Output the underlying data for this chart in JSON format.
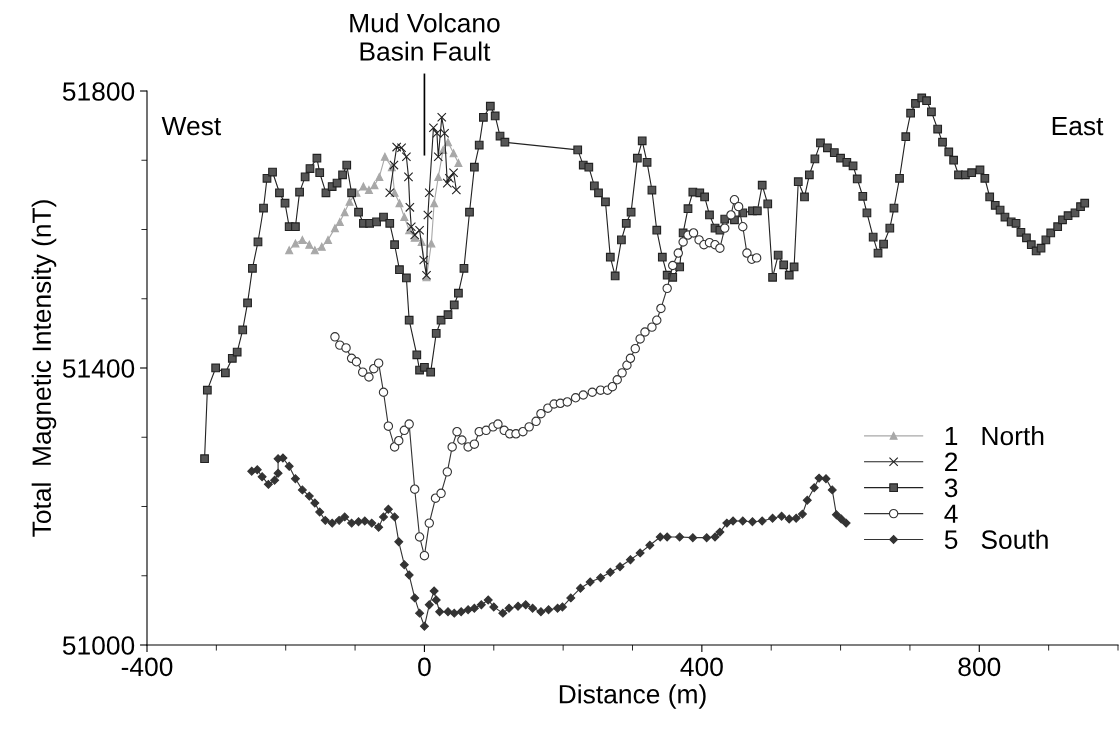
{
  "chart_data": {
    "type": "line",
    "xlabel": "Distance (m)",
    "ylabel": "Total  Magnetic Intensity (nT)",
    "xlim": [
      -400,
      1000
    ],
    "ylim": [
      51000,
      51800
    ],
    "xticks": [
      -400,
      {
        "value": -300,
        "label": null
      },
      {
        "value": -200,
        "label": null
      },
      {
        "value": -100,
        "label": null
      },
      0,
      {
        "value": 100,
        "label": null
      },
      {
        "value": 200,
        "label": null
      },
      {
        "value": 300,
        "label": null
      },
      400,
      {
        "value": 500,
        "label": null
      },
      {
        "value": 600,
        "label": null
      },
      {
        "value": 700,
        "label": null
      },
      800,
      {
        "value": 900,
        "label": null
      },
      {
        "value": 1000,
        "label": null
      }
    ],
    "yticks": [
      51000,
      {
        "value": 51100,
        "label": null
      },
      {
        "value": 51200,
        "label": null
      },
      {
        "value": 51300,
        "label": null
      },
      51400,
      {
        "value": 51500,
        "label": null
      },
      {
        "value": 51600,
        "label": null
      },
      {
        "value": 51700,
        "label": null
      },
      51800
    ],
    "grid": false,
    "legend": "bottom right",
    "line_style": "solid",
    "annotations": [
      "West",
      "East"
    ],
    "ref_lines": [
      {
        "axis": "x",
        "value": 0,
        "label": "Mud Volcano\nBasin Fault"
      }
    ],
    "series": [
      {
        "name": "1   North",
        "color": "#a8a8a8",
        "marker": "triangle",
        "x": [
          -195,
          -186,
          -176,
          -166,
          -158,
          -148,
          -139,
          -129,
          -122,
          -115,
          -108,
          -98,
          -88,
          -80,
          -72,
          -65,
          -57,
          -47,
          -43,
          -36,
          -29,
          -22,
          -14,
          -4,
          3,
          10,
          14,
          20,
          27,
          34,
          42,
          49
        ],
        "values": [
          51570,
          51580,
          51585,
          51578,
          51570,
          51575,
          51585,
          51602,
          51611,
          51625,
          51640,
          51653,
          51662,
          51657,
          51664,
          51676,
          51705,
          51690,
          51653,
          51638,
          51618,
          51599,
          51588,
          51582,
          51531,
          51580,
          51638,
          51676,
          51715,
          51726,
          51710,
          51696
        ]
      },
      {
        "name": "2",
        "color": "#222222",
        "marker": "cross",
        "x": [
          -50,
          -44,
          -40,
          -33,
          -26,
          -23,
          -21,
          -19,
          -14,
          -7,
          -1,
          3,
          5,
          7,
          13,
          18,
          20,
          25,
          29,
          33,
          36,
          42,
          46
        ],
        "values": [
          51653,
          51693,
          51719,
          51718,
          51705,
          51676,
          51632,
          51604,
          51592,
          51599,
          51556,
          51534,
          51621,
          51653,
          51747,
          51739,
          51705,
          51762,
          51739,
          51667,
          51674,
          51682,
          51657
        ]
      },
      {
        "name": "3",
        "color": "#222222",
        "marker": "square",
        "x": [
          -317,
          -313,
          -301,
          -287,
          -277,
          -270,
          -262,
          -255,
          -248,
          -240,
          -232,
          -227,
          -219,
          -209,
          -201,
          -195,
          -186,
          -180,
          -172,
          -165,
          -155,
          -151,
          -142,
          -133,
          -126,
          -118,
          -112,
          -105,
          -95,
          -88,
          -79,
          -69,
          -59,
          -50,
          -43,
          -36,
          -26,
          -22,
          -11,
          -7,
          0,
          9,
          17,
          24,
          34,
          43,
          49,
          57,
          65,
          72,
          79,
          85,
          95,
          102,
          109,
          116,
          221,
          229,
          237,
          245,
          251,
          261,
          268,
          275,
          284,
          291,
          298,
          307,
          314,
          321,
          328,
          335,
          343,
          350,
          358,
          368,
          373,
          380,
          387,
          397,
          404,
          411,
          419,
          426,
          433,
          447,
          459,
          473,
          480,
          487,
          495,
          502,
          510,
          518,
          526,
          533,
          539,
          548,
          555,
          563,
          571,
          581,
          591,
          600,
          609,
          618,
          624,
          632,
          638,
          647,
          654,
          662,
          671,
          677,
          685,
          694,
          701,
          708,
          717,
          724,
          731,
          740,
          747,
          756,
          763,
          770,
          780,
          789,
          801,
          808,
          815,
          823,
          830,
          837,
          846,
          853,
          860,
          868,
          875,
          882,
          889,
          896,
          903,
          913,
          920,
          928,
          938,
          946,
          952
        ],
        "values": [
          51269,
          51368,
          51400,
          51393,
          51414,
          51423,
          51455,
          51494,
          51544,
          51582,
          51631,
          51674,
          51683,
          51653,
          51638,
          51604,
          51604,
          51654,
          51676,
          51688,
          51703,
          51682,
          51653,
          51662,
          51667,
          51679,
          51693,
          51653,
          51625,
          51609,
          51609,
          51611,
          51618,
          51609,
          51578,
          51542,
          51530,
          51469,
          51419,
          51397,
          51401,
          51394,
          51450,
          51469,
          51477,
          51491,
          51508,
          51544,
          51625,
          51690,
          51722,
          51762,
          51778,
          51764,
          51735,
          51726,
          51715,
          51693,
          51690,
          51663,
          51653,
          51640,
          51560,
          51533,
          51585,
          51609,
          51625,
          51703,
          51728,
          51697,
          51657,
          51599,
          51560,
          51534,
          51531,
          51546,
          51595,
          51630,
          51654,
          51653,
          51647,
          51621,
          51602,
          51599,
          51615,
          51614,
          51624,
          51627,
          51627,
          51664,
          51637,
          51531,
          51563,
          51549,
          51534,
          51546,
          51669,
          51647,
          51679,
          51702,
          51725,
          51718,
          51711,
          51703,
          51697,
          51692,
          51673,
          51648,
          51624,
          51589,
          51566,
          51579,
          51602,
          51631,
          51674,
          51734,
          51768,
          51782,
          51790,
          51786,
          51770,
          51745,
          51726,
          51712,
          51700,
          51679,
          51679,
          51682,
          51686,
          51674,
          51647,
          51635,
          51628,
          51618,
          51611,
          51609,
          51596,
          51588,
          51578,
          51569,
          51573,
          51585,
          51595,
          51604,
          51614,
          51620,
          51624,
          51633,
          51638
        ]
      },
      {
        "name": "4",
        "color": "#333333",
        "marker": "circle",
        "x": [
          -129,
          -122,
          -113,
          -105,
          -98,
          -89,
          -80,
          -73,
          -66,
          -59,
          -52,
          -43,
          -37,
          -29,
          -22,
          -14,
          -7,
          0,
          7,
          16,
          24,
          33,
          40,
          47,
          54,
          63,
          72,
          79,
          89,
          99,
          106,
          115,
          123,
          132,
          142,
          151,
          161,
          168,
          178,
          187,
          196,
          206,
          218,
          229,
          242,
          254,
          264,
          271,
          278,
          285,
          292,
          297,
          304,
          311,
          318,
          328,
          335,
          341,
          350,
          358,
          366,
          373,
          380,
          388,
          396,
          403,
          411,
          419,
          426,
          433,
          442,
          447,
          453,
          459,
          465,
          472,
          479
        ],
        "values": [
          51445,
          51433,
          51429,
          51414,
          51409,
          51394,
          51387,
          51399,
          51407,
          51365,
          51316,
          51286,
          51295,
          51310,
          51319,
          51225,
          51156,
          51129,
          51176,
          51212,
          51219,
          51250,
          51286,
          51308,
          51296,
          51286,
          51290,
          51308,
          51310,
          51315,
          51319,
          51310,
          51305,
          51305,
          51308,
          51315,
          51323,
          51334,
          51342,
          51348,
          51349,
          51351,
          51357,
          51361,
          51365,
          51368,
          51368,
          51373,
          51383,
          51393,
          51404,
          51414,
          51428,
          51442,
          51452,
          51459,
          51469,
          51486,
          51515,
          51548,
          51566,
          51582,
          51592,
          51595,
          51585,
          51578,
          51581,
          51578,
          51573,
          51602,
          51621,
          51643,
          51633,
          51604,
          51566,
          51557,
          51559
        ]
      },
      {
        "name": "5   South",
        "color": "#333333",
        "marker": "diamond",
        "x": [
          -249,
          -241,
          -234,
          -225,
          -216,
          -211,
          -211,
          -204,
          -195,
          -186,
          -176,
          -166,
          -158,
          -151,
          -143,
          -133,
          -123,
          -115,
          -105,
          -95,
          -86,
          -76,
          -66,
          -59,
          -52,
          -43,
          -37,
          -29,
          -22,
          -14,
          -7,
          0,
          7,
          14,
          17,
          22,
          34,
          43,
          53,
          63,
          72,
          82,
          92,
          100,
          113,
          122,
          135,
          146,
          156,
          168,
          179,
          192,
          199,
          211,
          225,
          239,
          254,
          268,
          282,
          297,
          311,
          325,
          340,
          350,
          368,
          387,
          407,
          419,
          426,
          436,
          445,
          459,
          473,
          487,
          502,
          515,
          526,
          536,
          545,
          552,
          562,
          569,
          579,
          588,
          594,
          601,
          608
        ],
        "values": [
          51251,
          51253,
          51243,
          51232,
          51238,
          51248,
          51269,
          51270,
          51258,
          51240,
          51224,
          51215,
          51205,
          51192,
          51180,
          51176,
          51180,
          51185,
          51176,
          51178,
          51179,
          51176,
          51170,
          51185,
          51196,
          51185,
          51149,
          51116,
          51101,
          51068,
          51046,
          51027,
          51058,
          51078,
          51065,
          51048,
          51048,
          51046,
          51048,
          51051,
          51053,
          51058,
          51065,
          51055,
          51046,
          51053,
          51056,
          51058,
          51053,
          51048,
          51051,
          51053,
          51055,
          51068,
          51082,
          51091,
          51097,
          51105,
          51113,
          51123,
          51133,
          51144,
          51156,
          51156,
          51156,
          51155,
          51155,
          51156,
          51163,
          51176,
          51179,
          51179,
          51178,
          51179,
          51183,
          51186,
          51182,
          51183,
          51189,
          51209,
          51227,
          51241,
          51240,
          51224,
          51188,
          51182,
          51176
        ]
      }
    ]
  }
}
